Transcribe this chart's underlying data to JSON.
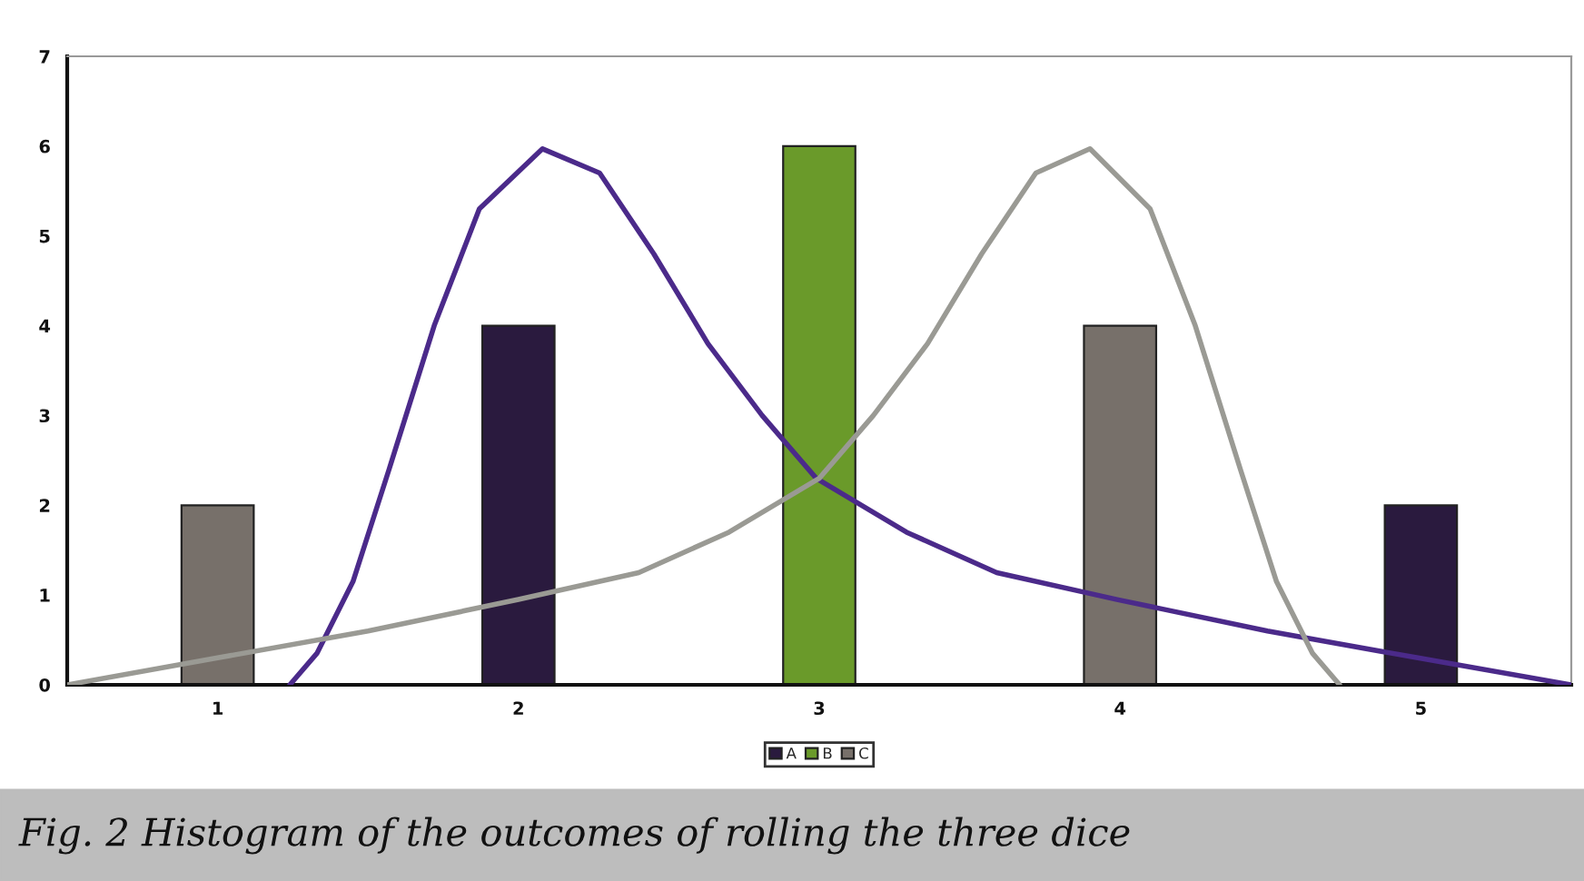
{
  "chart_data": {
    "type": "bar",
    "x": [
      1,
      2,
      3,
      4,
      5
    ],
    "xlim": [
      0.5,
      5.5
    ],
    "xticks": [
      1,
      2,
      3,
      4,
      5
    ],
    "ylim": [
      0,
      7
    ],
    "yticks": [
      0,
      1,
      2,
      3,
      4,
      5,
      6,
      7
    ],
    "grid": false,
    "legend": "bottom",
    "series": [
      {
        "name": "A",
        "color": "#2a1a3e",
        "values": [
          null,
          4,
          null,
          null,
          2
        ]
      },
      {
        "name": "B",
        "color": "#6a9a2a",
        "values": [
          null,
          null,
          6,
          null,
          null
        ]
      },
      {
        "name": "C",
        "color": "#77706a",
        "values": [
          2,
          null,
          null,
          4,
          null
        ]
      },
      {
        "type": "line",
        "color": "#4b2a8a",
        "x": [
          1.24,
          1.33,
          1.45,
          1.57,
          1.72,
          1.87,
          2.08,
          2.27,
          2.45,
          2.63,
          2.81,
          2.99,
          3.29,
          3.59,
          3.99,
          4.49,
          4.99,
          5.5
        ],
        "values": [
          0,
          0.35,
          1.15,
          2.4,
          4.0,
          5.3,
          5.97,
          5.7,
          4.8,
          3.8,
          3.0,
          2.3,
          1.7,
          1.25,
          0.95,
          0.6,
          0.3,
          0
        ]
      },
      {
        "type": "line",
        "color": "#9a9a94",
        "x": [
          0.5,
          1,
          1.5,
          2,
          2.4,
          2.7,
          3,
          3.18,
          3.36,
          3.54,
          3.72,
          3.9,
          4.1,
          4.25,
          4.4,
          4.52,
          4.64,
          4.73
        ],
        "values": [
          0,
          0.3,
          0.6,
          0.95,
          1.25,
          1.7,
          2.3,
          3.0,
          3.8,
          4.8,
          5.7,
          5.97,
          5.3,
          4.0,
          2.4,
          1.15,
          0.35,
          0
        ]
      }
    ],
    "annotations": [
      "Fig. 2 Histogram of the outcomes of rolling the three dice"
    ]
  }
}
